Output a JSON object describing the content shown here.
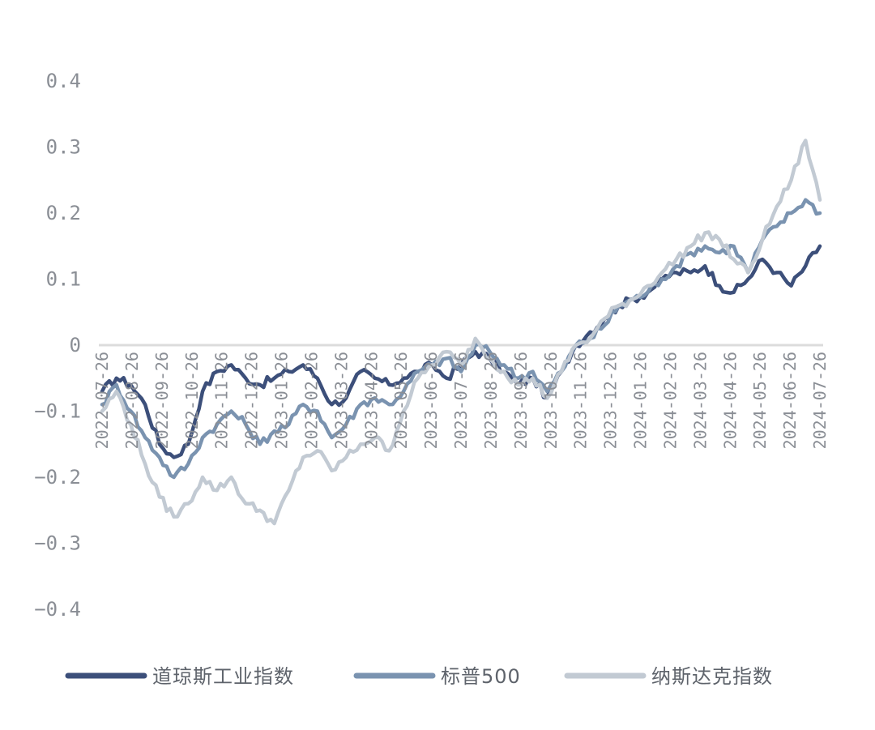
{
  "chart_data": {
    "type": "line",
    "title": "",
    "xlabel": "",
    "ylabel": "",
    "ylim": [
      -0.4,
      0.4
    ],
    "y_ticks": [
      "0.4",
      "0.3",
      "0.2",
      "0.1",
      "0",
      "−0.1",
      "−0.2",
      "−0.3",
      "−0.4"
    ],
    "x_ticks": [
      "2022-07-26",
      "2022-08-26",
      "2022-09-26",
      "2022-10-26",
      "2022-11-26",
      "2022-12-26",
      "2023-01-26",
      "2023-02-26",
      "2023-03-26",
      "2023-04-26",
      "2023-05-26",
      "2023-06-26",
      "2023-07-26",
      "2023-08-26",
      "2023-09-26",
      "2023-10-26",
      "2023-11-26",
      "2023-12-26",
      "2024-01-26",
      "2024-02-26",
      "2024-03-26",
      "2024-04-26",
      "2024-05-26",
      "2024-06-26",
      "2024-07-26"
    ],
    "zero_line": true,
    "grid": false,
    "legend_position": "bottom",
    "series": [
      {
        "name": "道琼斯工业指数",
        "color": "#3c4f7a",
        "values": [
          -0.07,
          -0.05,
          -0.06,
          -0.09,
          -0.15,
          -0.17,
          -0.15,
          -0.07,
          -0.04,
          -0.03,
          -0.05,
          -0.06,
          -0.05,
          -0.04,
          -0.03,
          -0.05,
          -0.09,
          -0.08,
          -0.04,
          -0.05,
          -0.06,
          -0.05,
          -0.04,
          -0.03,
          -0.05,
          -0.03,
          -0.01,
          -0.02,
          -0.04,
          -0.06,
          -0.05,
          -0.08,
          -0.04,
          0.0,
          0.02,
          0.04,
          0.06,
          0.07,
          0.08,
          0.1,
          0.11,
          0.11,
          0.12,
          0.09,
          0.08,
          0.1,
          0.13,
          0.11,
          0.09,
          0.12,
          0.15
        ]
      },
      {
        "name": "标普500",
        "color": "#7a93b0",
        "values": [
          -0.09,
          -0.06,
          -0.1,
          -0.14,
          -0.17,
          -0.2,
          -0.18,
          -0.14,
          -0.12,
          -0.1,
          -0.12,
          -0.15,
          -0.13,
          -0.12,
          -0.09,
          -0.1,
          -0.14,
          -0.12,
          -0.09,
          -0.08,
          -0.09,
          -0.07,
          -0.04,
          -0.03,
          -0.02,
          -0.04,
          0.0,
          -0.01,
          -0.03,
          -0.05,
          -0.04,
          -0.07,
          -0.04,
          0.0,
          0.01,
          0.03,
          0.06,
          0.07,
          0.08,
          0.1,
          0.12,
          0.14,
          0.15,
          0.14,
          0.15,
          0.11,
          0.16,
          0.18,
          0.2,
          0.22,
          0.2
        ]
      },
      {
        "name": "纳斯达克指数",
        "color": "#c2cad3",
        "values": [
          -0.1,
          -0.07,
          -0.12,
          -0.18,
          -0.23,
          -0.26,
          -0.24,
          -0.2,
          -0.22,
          -0.2,
          -0.24,
          -0.25,
          -0.27,
          -0.22,
          -0.17,
          -0.16,
          -0.19,
          -0.17,
          -0.15,
          -0.14,
          -0.16,
          -0.1,
          -0.05,
          -0.03,
          -0.01,
          -0.03,
          0.01,
          -0.02,
          -0.04,
          -0.06,
          -0.05,
          -0.08,
          -0.04,
          0.0,
          0.01,
          0.04,
          0.06,
          0.07,
          0.09,
          0.11,
          0.13,
          0.15,
          0.17,
          0.16,
          0.13,
          0.11,
          0.16,
          0.21,
          0.25,
          0.31,
          0.22
        ]
      }
    ]
  },
  "legend": {
    "items": [
      {
        "label": "道琼斯工业指数",
        "color": "#3c4f7a"
      },
      {
        "label": "标普500",
        "color": "#7a93b0"
      },
      {
        "label": "纳斯达克指数",
        "color": "#c2cad3"
      }
    ]
  }
}
